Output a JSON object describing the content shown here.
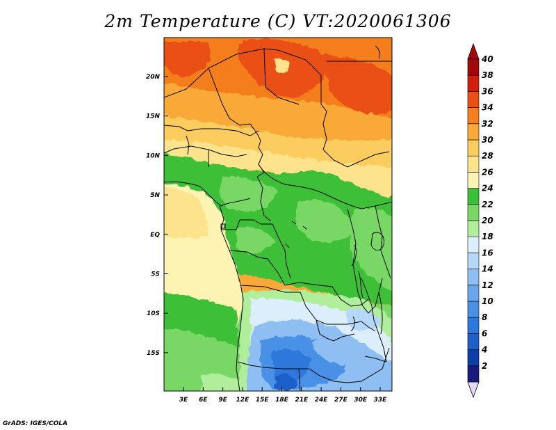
{
  "title": "2m Temperature (C) VT:2020061306",
  "credit": "GrADS: IGES/COLA",
  "map": {
    "lat_ticks": [
      "20N",
      "15N",
      "10N",
      "5N",
      "EQ",
      "5S",
      "10S",
      "15S"
    ],
    "lon_ticks": [
      "3E",
      "6E",
      "9E",
      "12E",
      "15E",
      "18E",
      "21E",
      "24E",
      "27E",
      "30E",
      "33E"
    ],
    "colorbar": {
      "labels": [
        "2",
        "4",
        "6",
        "8",
        "10",
        "12",
        "14",
        "16",
        "18",
        "20",
        "22",
        "24",
        "26",
        "28",
        "30",
        "32",
        "34",
        "36",
        "38",
        "40"
      ],
      "colors": [
        "#1a1a7a",
        "#0d3fa6",
        "#1e5fc8",
        "#2d78dc",
        "#4a91e6",
        "#6aa6ec",
        "#8fbff2",
        "#b6d8f8",
        "#dceefc",
        "#b0ee9c",
        "#79d865",
        "#3dc039",
        "#fdf3b2",
        "#fde48c",
        "#fbcd5f",
        "#f8a937",
        "#f57e1f",
        "#ea4f15",
        "#d0200d",
        "#a00a0a"
      ],
      "under_color": "#e2d7f4",
      "over_color": "#a00a0a"
    }
  }
}
